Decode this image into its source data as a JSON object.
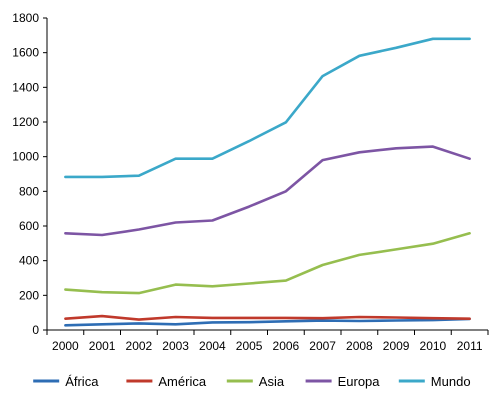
{
  "chart_data": {
    "type": "line",
    "x": [
      "2000",
      "2001",
      "2002",
      "2003",
      "2004",
      "2005",
      "2006",
      "2007",
      "2008",
      "2009",
      "2010",
      "2011"
    ],
    "ylim": [
      0,
      1800
    ],
    "yticks": [
      0,
      200,
      400,
      600,
      800,
      1000,
      1200,
      1400,
      1600,
      1800
    ],
    "grid": false,
    "legend_position": "bottom",
    "series": [
      {
        "name": "África",
        "color": "#2e6db4",
        "values": [
          27,
          33,
          38,
          33,
          44,
          45,
          50,
          54,
          52,
          55,
          57,
          64
        ]
      },
      {
        "name": "América",
        "color": "#c0392b",
        "values": [
          65,
          80,
          60,
          75,
          70,
          70,
          70,
          68,
          75,
          72,
          68,
          65
        ]
      },
      {
        "name": "Asia",
        "color": "#96be4f",
        "values": [
          233,
          218,
          213,
          262,
          252,
          268,
          285,
          375,
          433,
          465,
          498,
          558
        ]
      },
      {
        "name": "Europa",
        "color": "#7d55a4",
        "values": [
          558,
          548,
          580,
          620,
          632,
          712,
          800,
          980,
          1025,
          1048,
          1058,
          988
        ]
      },
      {
        "name": "Mundo",
        "color": "#3ba8c9",
        "values": [
          883,
          883,
          890,
          988,
          988,
          1090,
          1198,
          1465,
          1582,
          1628,
          1680,
          1680
        ]
      }
    ]
  }
}
